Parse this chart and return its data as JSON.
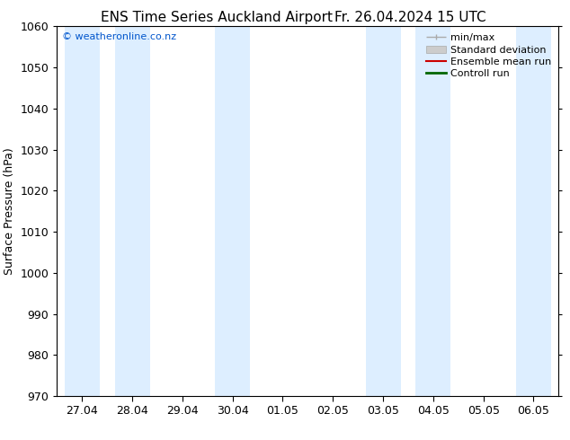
{
  "title_left": "ENS Time Series Auckland Airport",
  "title_right": "Fr. 26.04.2024 15 UTC",
  "ylabel": "Surface Pressure (hPa)",
  "ylim": [
    970,
    1060
  ],
  "yticks": [
    970,
    980,
    990,
    1000,
    1010,
    1020,
    1030,
    1040,
    1050,
    1060
  ],
  "xtick_labels": [
    "27.04",
    "28.04",
    "29.04",
    "30.04",
    "01.05",
    "02.05",
    "03.05",
    "04.05",
    "05.05",
    "06.05"
  ],
  "watermark": "© weatheronline.co.nz",
  "watermark_color": "#0055cc",
  "background_color": "#ffffff",
  "shaded_band_color": "#ddeeff",
  "shaded_columns": [
    0,
    1,
    3,
    6,
    7,
    9
  ],
  "legend_entries": [
    {
      "label": "min/max",
      "color": "#aaaaaa",
      "style": "minmax"
    },
    {
      "label": "Standard deviation",
      "color": "#cccccc",
      "style": "patch"
    },
    {
      "label": "Ensemble mean run",
      "color": "#cc0000",
      "style": "line"
    },
    {
      "label": "Controll run",
      "color": "#006600",
      "style": "line"
    }
  ],
  "title_fontsize": 11,
  "axis_fontsize": 9,
  "tick_fontsize": 9,
  "legend_fontsize": 8
}
